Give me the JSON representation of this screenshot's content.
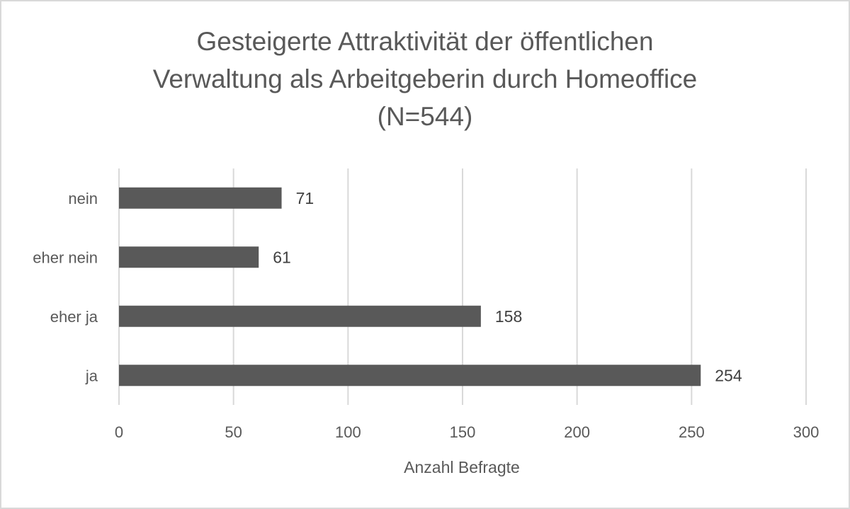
{
  "chart_data": {
    "type": "bar",
    "orientation": "horizontal",
    "title_lines": [
      "Gesteigerte Attraktivität der öffentlichen",
      "Verwaltung als Arbeitgeberin durch Homeoffice",
      "(N=544)"
    ],
    "categories": [
      "nein",
      "eher nein",
      "eher ja",
      "ja"
    ],
    "values": [
      71,
      61,
      158,
      254
    ],
    "data_labels": [
      "71",
      "61",
      "158",
      "254"
    ],
    "xlabel": "Anzahl Befragte",
    "ylabel": "",
    "xlim": [
      0,
      300
    ],
    "x_ticks": [
      0,
      50,
      100,
      150,
      200,
      250,
      300
    ],
    "x_tick_labels": [
      "0",
      "50",
      "100",
      "150",
      "200",
      "250",
      "300"
    ],
    "grid": "vertical",
    "legend": "none",
    "colors": {
      "bar": "#595959",
      "grid": "#d9d9d9",
      "text": "#595959",
      "border": "#d9d9d9"
    }
  }
}
